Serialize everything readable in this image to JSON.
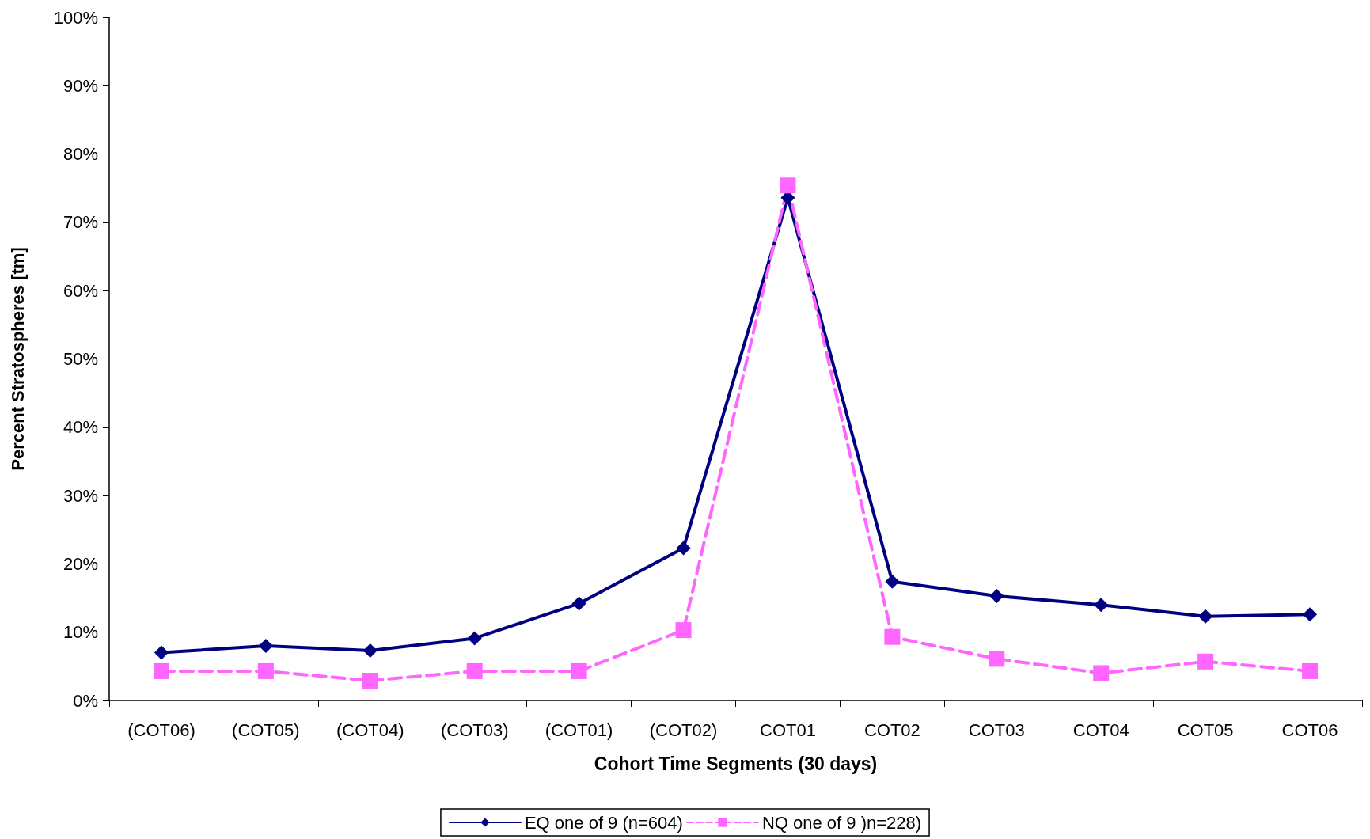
{
  "chart_data": {
    "type": "line",
    "xlabel": "Cohort Time Segments (30 days)",
    "ylabel": "Percent Stratospheres [tm]",
    "categories": [
      "(COT06)",
      "(COT05)",
      "(COT04)",
      "(COT03)",
      "(COT01)",
      "(COT02)",
      "COT01",
      "COT02",
      "COT03",
      "COT04",
      "COT05",
      "COT06"
    ],
    "series": [
      {
        "name": "EQ one of 9 (n=604)",
        "color": "#000080",
        "marker": "diamond",
        "line_style": "solid",
        "values": [
          7.0,
          8.0,
          7.3,
          9.1,
          14.2,
          22.3,
          73.6,
          17.4,
          15.3,
          14.0,
          12.3,
          12.6
        ]
      },
      {
        "name": "NQ one of 9 )n=228)",
        "color": "#ff66ff",
        "marker": "square",
        "line_style": "dashed",
        "values": [
          4.3,
          4.3,
          2.9,
          4.3,
          4.3,
          10.3,
          75.4,
          9.3,
          6.1,
          4.0,
          5.7,
          4.3
        ]
      }
    ],
    "ylim": [
      0,
      100
    ],
    "yticks": [
      {
        "value": 0,
        "label": "0%"
      },
      {
        "value": 10,
        "label": "10%"
      },
      {
        "value": 20,
        "label": "20%"
      },
      {
        "value": 30,
        "label": "30%"
      },
      {
        "value": 40,
        "label": "40%"
      },
      {
        "value": 50,
        "label": "50%"
      },
      {
        "value": 60,
        "label": "60%"
      },
      {
        "value": 70,
        "label": "70%"
      },
      {
        "value": 80,
        "label": "80%"
      },
      {
        "value": 90,
        "label": "90%"
      },
      {
        "value": 100,
        "label": "100%"
      }
    ],
    "grid": false,
    "legend": "bottom"
  }
}
